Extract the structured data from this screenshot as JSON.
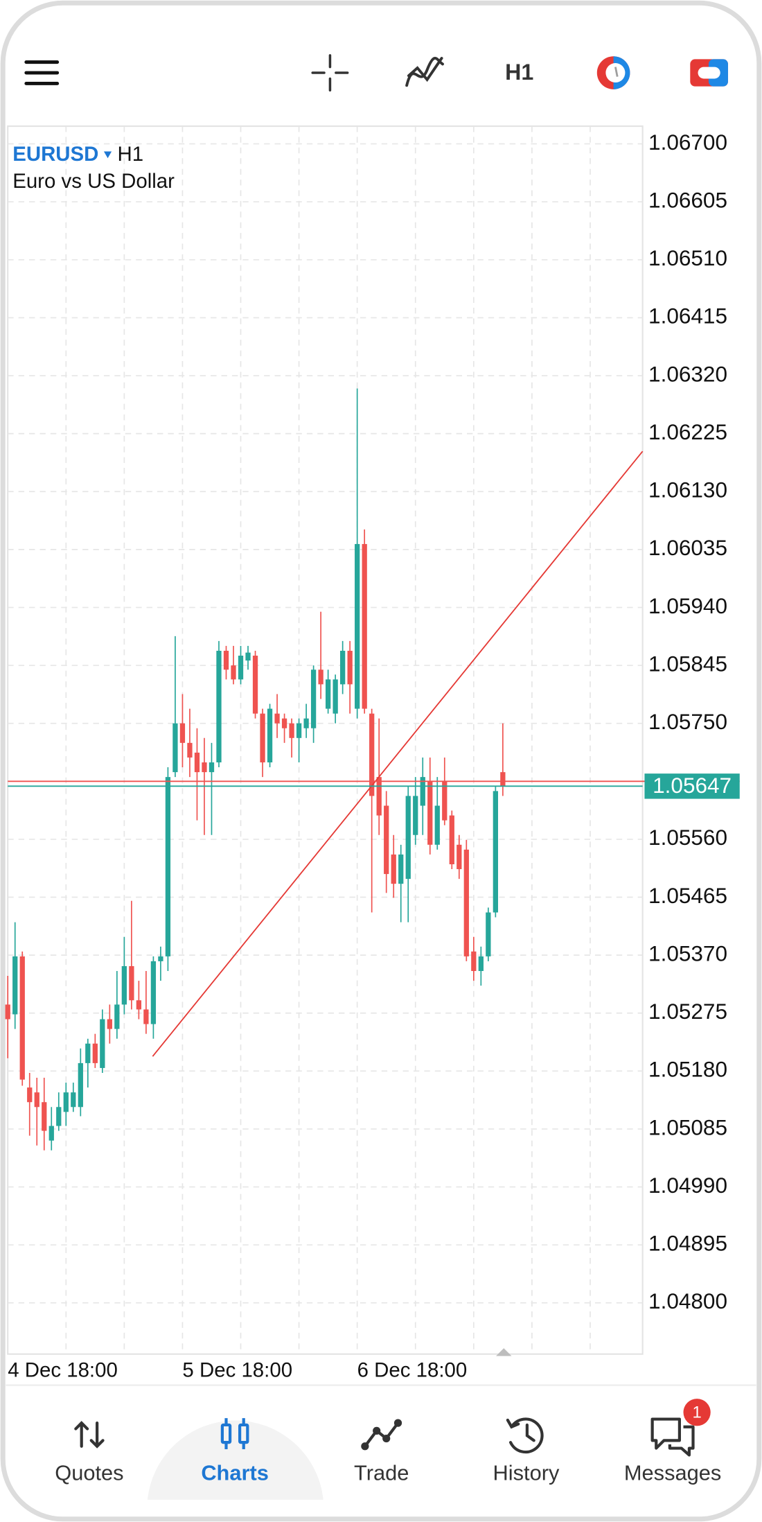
{
  "toolbar": {
    "timeframe": "H1"
  },
  "chart_header": {
    "symbol": "EURUSD",
    "timeframe": "H1",
    "description": "Euro vs US Dollar"
  },
  "chart_data": {
    "type": "candlestick",
    "categories": [
      "4 Dec 18:00",
      null,
      null,
      null,
      null,
      null,
      null,
      null,
      null,
      null,
      null,
      null,
      null,
      null,
      null,
      null,
      null,
      null,
      null,
      null,
      null,
      null,
      null,
      null,
      "5 Dec 18:00",
      null,
      null,
      null,
      null,
      null,
      null,
      null,
      null,
      null,
      null,
      null,
      null,
      null,
      null,
      null,
      null,
      null,
      null,
      null,
      null,
      null,
      null,
      null,
      "6 Dec 18:00",
      null,
      null,
      null,
      null,
      null,
      null,
      null,
      null,
      null,
      null,
      null,
      null,
      null,
      null,
      null,
      null,
      null,
      null,
      null,
      null
    ],
    "open": [
      1.05289,
      1.05273,
      1.05368,
      1.05153,
      1.05145,
      1.05129,
      1.05066,
      1.0509,
      1.05113,
      1.05121,
      1.05121,
      1.05193,
      1.05225,
      1.05185,
      1.05265,
      1.05249,
      1.05289,
      1.05352,
      1.05296,
      1.05281,
      1.05257,
      1.0536,
      1.05368,
      1.0567,
      1.0575,
      1.05718,
      1.05702,
      1.05686,
      1.0567,
      1.05686,
      1.05869,
      1.05845,
      1.05822,
      1.05853,
      1.05861,
      1.05766,
      1.05686,
      1.05766,
      1.05758,
      1.0575,
      1.05726,
      1.05742,
      1.05742,
      1.05838,
      1.05774,
      1.05766,
      1.05814,
      1.05869,
      1.05774,
      1.06044,
      1.05766,
      1.05662,
      1.05615,
      1.05535,
      1.05487,
      1.05495,
      1.05567,
      1.05615,
      1.05655,
      1.05551,
      1.05655,
      1.05599,
      1.05551,
      1.05543,
      1.05376,
      1.05344,
      1.05368,
      1.0544,
      1.0567
    ],
    "high": [
      1.05336,
      1.05424,
      1.05376,
      1.05177,
      1.05169,
      1.05169,
      1.05121,
      1.05145,
      1.05161,
      1.05161,
      1.05217,
      1.05233,
      1.05241,
      1.05281,
      1.05289,
      1.05344,
      1.054,
      1.05459,
      1.05328,
      1.05344,
      1.05368,
      1.05384,
      1.05678,
      1.05893,
      1.05798,
      1.05774,
      1.05742,
      1.05726,
      1.05718,
      1.05885,
      1.05877,
      1.05877,
      1.05877,
      1.05877,
      1.05869,
      1.05774,
      1.05782,
      1.05798,
      1.05766,
      1.05758,
      1.05758,
      1.05782,
      1.05845,
      1.05933,
      1.05838,
      1.0583,
      1.05885,
      1.05885,
      1.06299,
      1.06068,
      1.05774,
      1.05758,
      1.05639,
      1.05567,
      1.05551,
      1.05647,
      1.05662,
      1.05694,
      1.05694,
      1.05662,
      1.05694,
      1.05607,
      1.05567,
      1.05559,
      1.054,
      1.05384,
      1.05448,
      1.05647,
      1.0575
    ],
    "low": [
      1.05201,
      1.05249,
      1.05156,
      1.05074,
      1.05058,
      1.0505,
      1.0505,
      1.05082,
      1.0509,
      1.05113,
      1.05106,
      1.05153,
      1.05185,
      1.05177,
      1.05225,
      1.05233,
      1.05273,
      1.05281,
      1.05265,
      1.05241,
      1.05233,
      1.05328,
      1.05344,
      1.05662,
      1.05678,
      1.05662,
      1.05591,
      1.05567,
      1.05567,
      1.05678,
      1.05822,
      1.05814,
      1.05814,
      1.05838,
      1.05758,
      1.05662,
      1.05678,
      1.05726,
      1.05718,
      1.05694,
      1.05686,
      1.05726,
      1.05718,
      1.0579,
      1.05766,
      1.0575,
      1.05798,
      1.05766,
      1.05758,
      1.05766,
      1.0544,
      1.05567,
      1.05472,
      1.05464,
      1.05424,
      1.05424,
      1.05551,
      1.05567,
      1.05535,
      1.05543,
      1.05583,
      1.05511,
      1.05495,
      1.0536,
      1.05328,
      1.0532,
      1.0536,
      1.05432,
      1.05631
    ],
    "close": [
      1.05265,
      1.05368,
      1.05166,
      1.05129,
      1.05121,
      1.05082,
      1.0509,
      1.05121,
      1.05145,
      1.05145,
      1.05193,
      1.05225,
      1.05193,
      1.05265,
      1.05249,
      1.05289,
      1.05352,
      1.05296,
      1.05281,
      1.05257,
      1.0536,
      1.05368,
      1.05662,
      1.0575,
      1.05718,
      1.05694,
      1.0567,
      1.0567,
      1.05686,
      1.05869,
      1.05838,
      1.05822,
      1.05861,
      1.05866,
      1.05766,
      1.05686,
      1.05774,
      1.0575,
      1.05742,
      1.05726,
      1.0575,
      1.05758,
      1.05838,
      1.05814,
      1.05822,
      1.05822,
      1.05869,
      1.05814,
      1.06044,
      1.05774,
      1.05631,
      1.05599,
      1.05503,
      1.05487,
      1.05535,
      1.05631,
      1.05631,
      1.05662,
      1.05551,
      1.05615,
      1.05591,
      1.05519,
      1.05511,
      1.05368,
      1.05344,
      1.05368,
      1.0544,
      1.05639,
      1.05647
    ],
    "up_color": "#26a69a",
    "down_color": "#ef5350",
    "ylim": [
      1.04716,
      1.06729
    ],
    "yticks": [
      {
        "value": 1.067,
        "label": "1.06700"
      },
      1.06605,
      {
        "value": 1.0651,
        "label": "1.06510"
      },
      1.06415,
      {
        "value": 1.0632,
        "label": "1.06320"
      },
      1.06225,
      {
        "value": 1.0613,
        "label": "1.06130"
      },
      1.06035,
      {
        "value": 1.0594,
        "label": "1.05940"
      },
      1.05845,
      {
        "value": 1.0575,
        "label": "1.05750"
      },
      {
        "value": 1.0556,
        "label": "1.05560"
      },
      1.05465,
      {
        "value": 1.0537,
        "label": "1.05370"
      },
      1.05275,
      {
        "value": 1.0518,
        "label": "1.05180"
      },
      1.05085,
      {
        "value": 1.0499,
        "label": "1.04990"
      },
      1.04895,
      {
        "value": 1.048,
        "label": "1.04800"
      }
    ],
    "grid": true,
    "bid": 1.05647,
    "ask": 1.05655,
    "bid_color": "#26a69a",
    "ask_color": "#ef5350",
    "trend_line": {
      "x": [
        19.9,
        87.2
      ],
      "y": [
        1.05204,
        1.06196
      ],
      "color": "#e53935"
    }
  },
  "bottom_nav": {
    "items": [
      {
        "label": "Quotes"
      },
      {
        "label": "Charts",
        "active": true
      },
      {
        "label": "Trade"
      },
      {
        "label": "History"
      },
      {
        "label": "Messages",
        "badge": 1
      }
    ]
  }
}
